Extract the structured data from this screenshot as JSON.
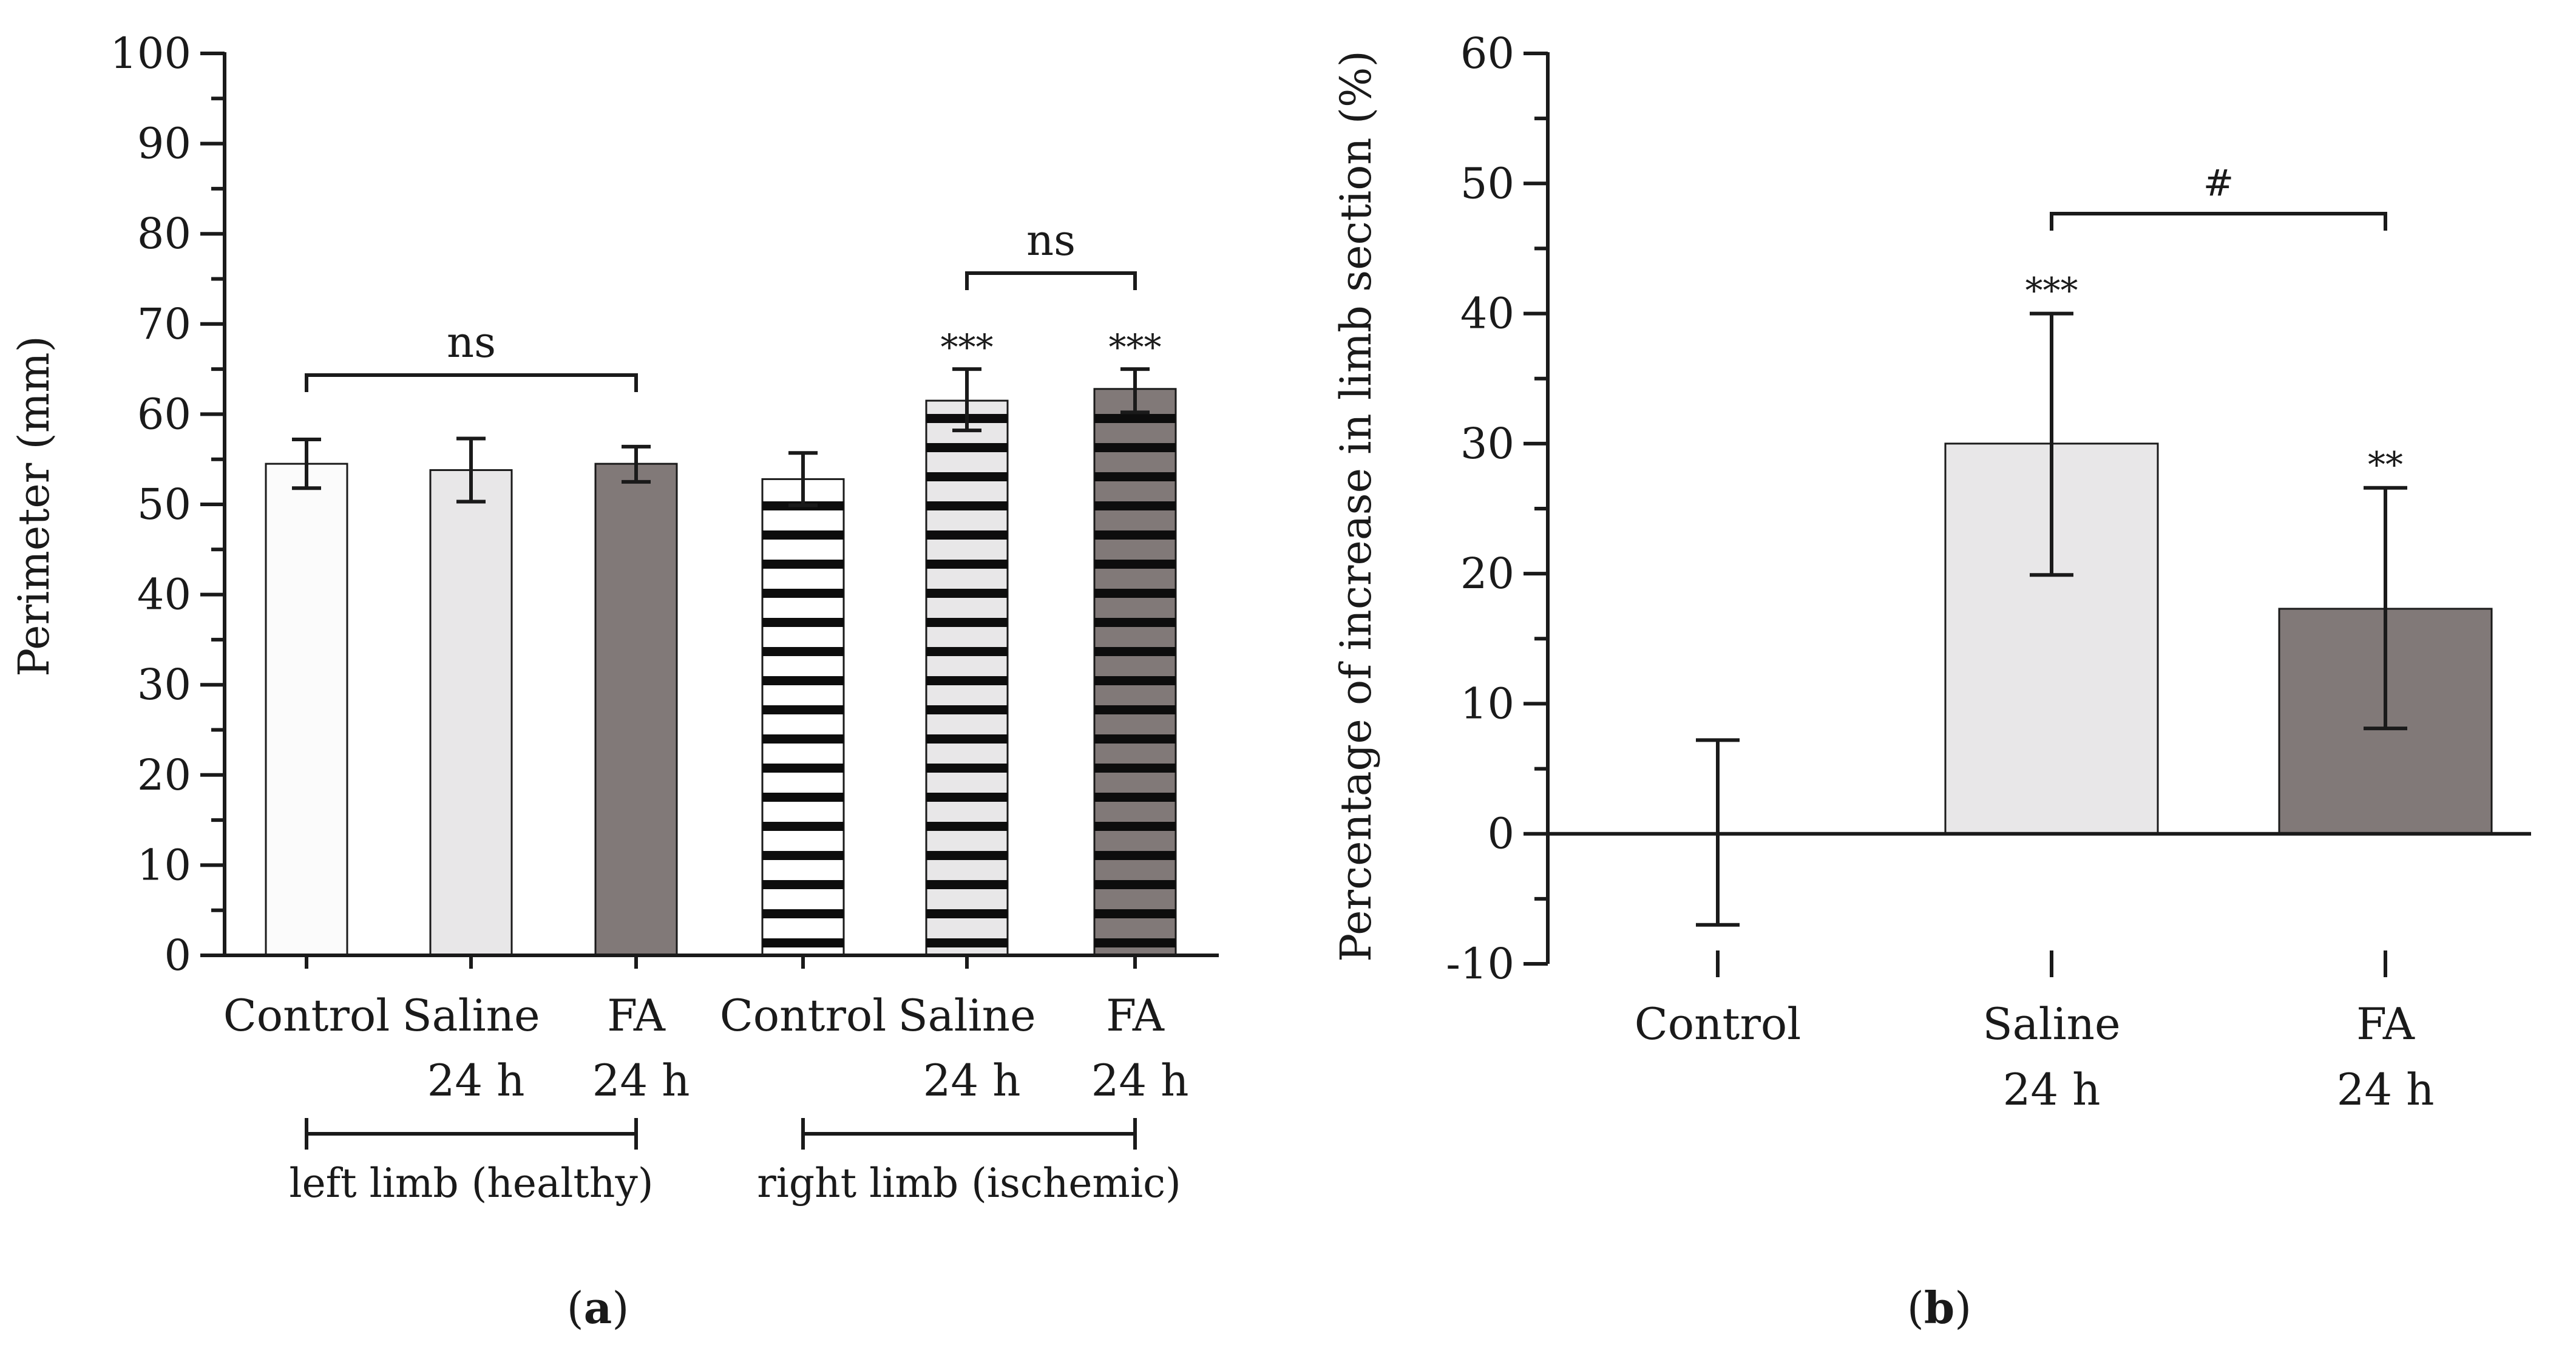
{
  "chart_data": [
    {
      "type": "bar",
      "panel_label": "a",
      "ylabel": "Perimeter (mm)",
      "ylim": [
        0,
        100
      ],
      "yticks": [
        "0",
        "10",
        "20",
        "30",
        "40",
        "50",
        "60",
        "70",
        "80",
        "90",
        "100"
      ],
      "categories": [
        {
          "line1": "Control",
          "line2": "",
          "value": 54.5,
          "err_low": 51.8,
          "err_high": 57.2,
          "fill": "#fbfbfb",
          "striped": false,
          "stars": ""
        },
        {
          "line1": "Saline",
          "line2": "24 h",
          "value": 53.8,
          "err_low": 50.3,
          "err_high": 57.3,
          "fill": "#e8e7e8",
          "striped": false,
          "stars": ""
        },
        {
          "line1": "FA",
          "line2": "24 h",
          "value": 54.5,
          "err_low": 52.5,
          "err_high": 56.4,
          "fill": "#817978",
          "striped": false,
          "stars": ""
        },
        {
          "line1": "Control",
          "line2": "",
          "value": 52.8,
          "err_low": 49.9,
          "err_high": 55.7,
          "fill": "#ffffff",
          "striped": true,
          "stars": ""
        },
        {
          "line1": "Saline",
          "line2": "24 h",
          "value": 61.5,
          "err_low": 58.2,
          "err_high": 65.0,
          "fill": "#e8e7e8",
          "striped": true,
          "stars": "***"
        },
        {
          "line1": "FA",
          "line2": "24 h",
          "value": 62.8,
          "err_low": 60.2,
          "err_high": 65.0,
          "fill": "#817978",
          "striped": true,
          "stars": "***"
        }
      ],
      "significance": [
        {
          "label": "ns",
          "from": 0,
          "to": 2
        },
        {
          "label": "ns",
          "from": 4,
          "to": 5
        }
      ],
      "groups": [
        {
          "label": "left limb (healthy)",
          "from": 0,
          "to": 2
        },
        {
          "label": "right limb (ischemic)",
          "from": 3,
          "to": 5
        }
      ]
    },
    {
      "type": "bar",
      "panel_label": "b",
      "ylabel": "Percentage of increase in limb section (%)",
      "ylim": [
        -10,
        60
      ],
      "yticks": [
        "-10",
        "0",
        "10",
        "20",
        "30",
        "40",
        "50",
        "60"
      ],
      "categories": [
        {
          "line1": "Control",
          "line2": "",
          "value": 0,
          "err_low": -7.0,
          "err_high": 7.2,
          "fill": "#ffffff",
          "stars": ""
        },
        {
          "line1": "Saline",
          "line2": "24 h",
          "value": 30.0,
          "err_low": 19.9,
          "err_high": 40.0,
          "fill": "#e8e7e8",
          "stars": "***"
        },
        {
          "line1": "FA",
          "line2": "24 h",
          "value": 17.3,
          "err_low": 8.1,
          "err_high": 26.6,
          "fill": "#817978",
          "stars": "**"
        }
      ],
      "significance": [
        {
          "label": "#",
          "from": 1,
          "to": 2
        }
      ]
    }
  ]
}
